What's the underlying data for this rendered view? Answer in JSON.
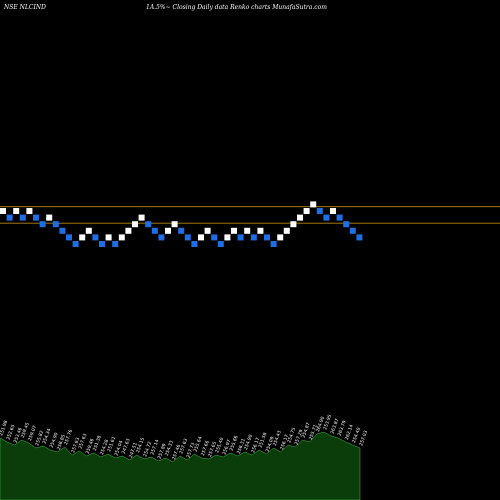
{
  "header": {
    "symbol": "NSE NLCIND",
    "subtitle": "1A.5%~ Closing Daily data Renko charts MunafaSutra.com"
  },
  "colors": {
    "background": "#000000",
    "up_brick": "#ffffff",
    "down_brick": "#1e6fe6",
    "reference_line": "#b8860b",
    "volume_fill": "#0a3d0a",
    "volume_outline": "#3fbf3f"
  },
  "chart_data": {
    "type": "renko",
    "bricks": [
      {
        "dir": "up",
        "level": 0
      },
      {
        "dir": "down",
        "level": 1
      },
      {
        "dir": "up",
        "level": 0
      },
      {
        "dir": "down",
        "level": 1
      },
      {
        "dir": "up",
        "level": 0
      },
      {
        "dir": "down",
        "level": 1
      },
      {
        "dir": "down",
        "level": 2
      },
      {
        "dir": "up",
        "level": 1
      },
      {
        "dir": "down",
        "level": 2
      },
      {
        "dir": "down",
        "level": 3
      },
      {
        "dir": "down",
        "level": 4
      },
      {
        "dir": "down",
        "level": 5
      },
      {
        "dir": "up",
        "level": 4
      },
      {
        "dir": "up",
        "level": 3
      },
      {
        "dir": "down",
        "level": 4
      },
      {
        "dir": "down",
        "level": 5
      },
      {
        "dir": "up",
        "level": 4
      },
      {
        "dir": "down",
        "level": 5
      },
      {
        "dir": "up",
        "level": 4
      },
      {
        "dir": "up",
        "level": 3
      },
      {
        "dir": "up",
        "level": 2
      },
      {
        "dir": "up",
        "level": 1
      },
      {
        "dir": "down",
        "level": 2
      },
      {
        "dir": "down",
        "level": 3
      },
      {
        "dir": "down",
        "level": 4
      },
      {
        "dir": "up",
        "level": 3
      },
      {
        "dir": "up",
        "level": 2
      },
      {
        "dir": "down",
        "level": 3
      },
      {
        "dir": "down",
        "level": 4
      },
      {
        "dir": "down",
        "level": 5
      },
      {
        "dir": "up",
        "level": 4
      },
      {
        "dir": "up",
        "level": 3
      },
      {
        "dir": "down",
        "level": 4
      },
      {
        "dir": "down",
        "level": 5
      },
      {
        "dir": "up",
        "level": 4
      },
      {
        "dir": "up",
        "level": 3
      },
      {
        "dir": "down",
        "level": 4
      },
      {
        "dir": "up",
        "level": 3
      },
      {
        "dir": "down",
        "level": 4
      },
      {
        "dir": "up",
        "level": 3
      },
      {
        "dir": "down",
        "level": 4
      },
      {
        "dir": "down",
        "level": 5
      },
      {
        "dir": "up",
        "level": 4
      },
      {
        "dir": "up",
        "level": 3
      },
      {
        "dir": "up",
        "level": 2
      },
      {
        "dir": "up",
        "level": 1
      },
      {
        "dir": "up",
        "level": 0
      },
      {
        "dir": "up",
        "level": -1
      },
      {
        "dir": "down",
        "level": 0
      },
      {
        "dir": "down",
        "level": 1
      },
      {
        "dir": "up",
        "level": 0
      },
      {
        "dir": "down",
        "level": 1
      },
      {
        "dir": "down",
        "level": 2
      },
      {
        "dir": "down",
        "level": 3
      },
      {
        "dir": "down",
        "level": 4
      }
    ],
    "reference_levels": [
      -0.2,
      2.3
    ],
    "volume": {
      "values": [
        62,
        58,
        55,
        60,
        57,
        52,
        54,
        50,
        48,
        53,
        45,
        49,
        44,
        47,
        43,
        46,
        42,
        44,
        40,
        45,
        41,
        43,
        39,
        42,
        38,
        44,
        40,
        46,
        42,
        41,
        45,
        43,
        47,
        44,
        48,
        45,
        50,
        46,
        52,
        48,
        55,
        53,
        60,
        58,
        66,
        68,
        64,
        62,
        58,
        55,
        52
      ],
      "labels": [
        "251.98",
        "252.65",
        "253.46",
        "259.45",
        "259.07",
        "255.82",
        "254.34",
        "254.90",
        "258.85",
        "257.76",
        "257.63",
        "257.63",
        "259.46",
        "251.38",
        "254.28",
        "251.61",
        "254.04",
        "247.63",
        "247.51",
        "254.15",
        "254.72",
        "257.14",
        "257.89",
        "254.33",
        "257.46",
        "257.63",
        "257.73",
        "255.64",
        "257.66",
        "257.65",
        "255.40",
        "256.97",
        "255.66",
        "256.31",
        "254.90",
        "256.17",
        "251.58",
        "254.09",
        "254.43",
        "256.17",
        "254.75",
        "257.29",
        "254.87",
        "255.71",
        "264.90",
        "253.95",
        "263.87",
        "263.79",
        "262.14",
        "254.40",
        "257.03"
      ]
    }
  }
}
